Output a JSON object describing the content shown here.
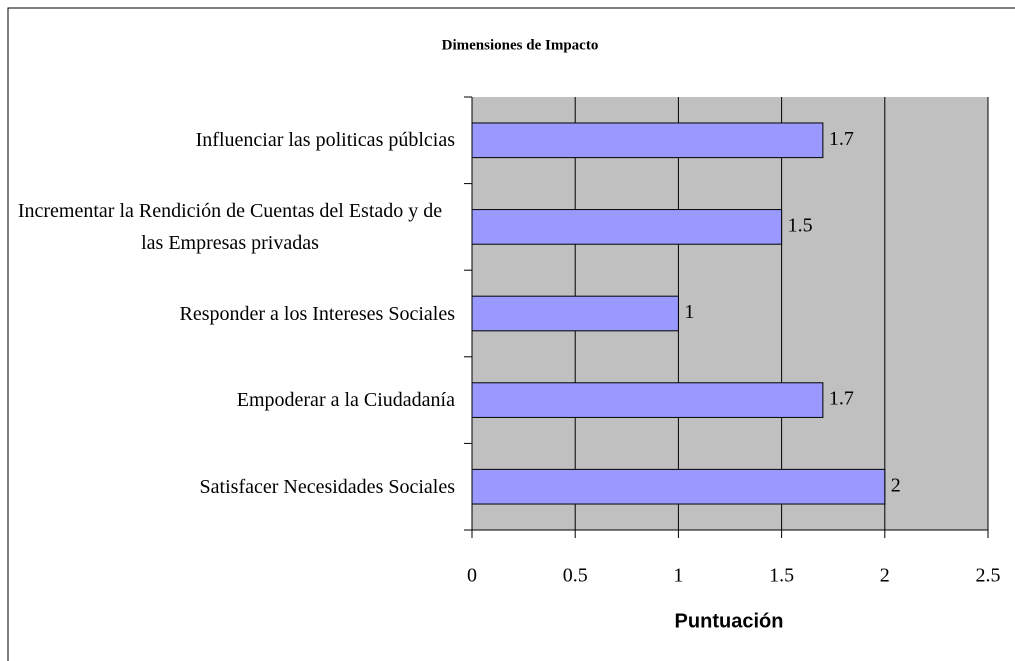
{
  "chart_data": {
    "type": "bar",
    "orientation": "horizontal",
    "title": "Dimensiones de Impacto",
    "x_label": "Puntuación",
    "categories": [
      "Influenciar las politicas públcias",
      "Incrementar la Rendición de Cuentas del Estado y de las Empresas privadas",
      "Responder a los Intereses Sociales",
      "Empoderar a la Ciudadanía",
      "Satisfacer Necesidades Sociales"
    ],
    "values": [
      1.7,
      1.5,
      1,
      1.7,
      2
    ],
    "color": "#9999ff",
    "xlim": [
      0,
      2.5
    ],
    "xticks": [
      0,
      0.5,
      1,
      1.5,
      2,
      2.5
    ],
    "grid": true
  }
}
